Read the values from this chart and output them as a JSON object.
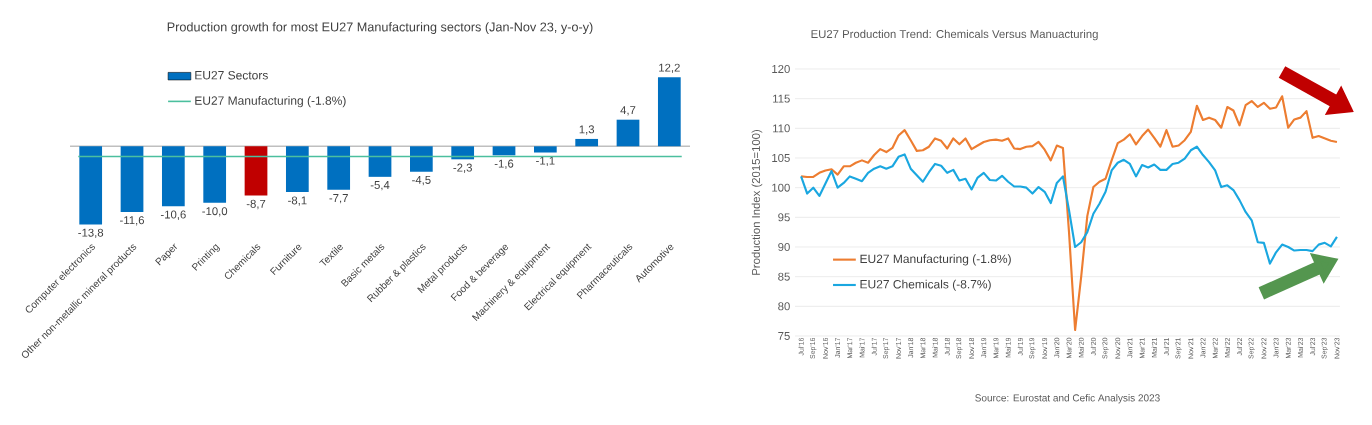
{
  "chart_data": [
    {
      "type": "bar",
      "title": "Production growth for most EU27 Manufacturing sectors (Jan-Nov 23, y-o-y)",
      "categories": [
        "Computer electronics",
        "Other non-metallic mineral products",
        "Paper",
        "Printing",
        "Chemicals",
        "Furniture",
        "Textile",
        "Basic metals",
        "Rubber & plastics",
        "Metal products",
        "Food & beverage",
        "Machinery & equipment",
        "Electrical equipment",
        "Pharmaceuticals",
        "Automotive"
      ],
      "series": [
        {
          "name": "EU27 Sectors",
          "colors": [
            "#0070c0",
            "#0070c0",
            "#0070c0",
            "#0070c0",
            "#c00000",
            "#0070c0",
            "#0070c0",
            "#0070c0",
            "#0070c0",
            "#0070c0",
            "#0070c0",
            "#0070c0",
            "#0070c0",
            "#0070c0",
            "#0070c0"
          ],
          "values": [
            -13.8,
            -11.6,
            -10.6,
            -10.0,
            -8.7,
            -8.1,
            -7.7,
            -5.4,
            -4.5,
            -2.3,
            -1.6,
            -1.1,
            1.3,
            4.7,
            12.2
          ],
          "value_labels": [
            "-13,8",
            "-11,6",
            "-10,6",
            "-10,0",
            "-8,7",
            "-8,1",
            "-7,7",
            "-5,4",
            "-4,5",
            "-2,3",
            "-1,6",
            "-1,1",
            "1,3",
            "4,7",
            "12,2"
          ]
        }
      ],
      "ref_lines": [
        {
          "axis": "y",
          "value": -1.8,
          "label": "EU27 Manufacturing (-1.8%)",
          "color": "#4bbf9e"
        }
      ],
      "legend": "top left"
    },
    {
      "type": "line",
      "title": "EU27 Production Trend: Chemicals Versus Manuacturing",
      "ylabel": "Production Index (2015=100)",
      "categories": [
        "Jul'16",
        null,
        "Sep'16",
        null,
        "Nov'16",
        null,
        "Jan'17",
        null,
        "Mar'17",
        null,
        "Mai'17",
        null,
        "Jul'17",
        null,
        "Sep'17",
        null,
        "Nov'17",
        null,
        "Jan'18",
        null,
        "Mar'18",
        null,
        "Mai'18",
        null,
        "Jul'18",
        null,
        "Sep'18",
        null,
        "Nov'18",
        null,
        "Jan'19",
        null,
        "Mar'19",
        null,
        "Mai'19",
        null,
        "Jul'19",
        null,
        "Sep'19",
        null,
        "Nov'19",
        null,
        "Jan'20",
        null,
        "Mar'20",
        null,
        "Mai'20",
        null,
        "Jul'20",
        null,
        "Sep'20",
        null,
        "Nov'20",
        null,
        "Jan'21",
        null,
        "Mar'21",
        null,
        "Mai'21",
        null,
        "Jul'21",
        null,
        "Sep'21",
        null,
        "Nov'21",
        null,
        "Jan'22",
        null,
        "Mar'22",
        null,
        "Mai'22",
        null,
        "Jul'22",
        null,
        "Sep'22",
        null,
        "Nov'22",
        null,
        "Jan'23",
        null,
        "Mar'23",
        null,
        "Mai'23",
        null,
        "Jul'23",
        null,
        "Sep'23",
        null,
        "Nov'23"
      ],
      "series": [
        {
          "name": "EU27 Manufacturing (-1.8%)",
          "color": "#ed7d31",
          "values": [
            101.9,
            101.8,
            101.8,
            102.5,
            102.9,
            103.1,
            102.2,
            103.6,
            103.6,
            104.2,
            104.6,
            104.2,
            105.5,
            106.5,
            106.0,
            106.7,
            108.8,
            109.7,
            108.0,
            106.2,
            106.3,
            106.9,
            108.3,
            107.9,
            106.6,
            108.3,
            107.3,
            108.3,
            106.5,
            107.1,
            107.7,
            108.0,
            108.1,
            107.9,
            108.3,
            106.6,
            106.5,
            106.9,
            107.0,
            107.7,
            106.4,
            104.6,
            107.1,
            106.7,
            92.5,
            76.0,
            85.0,
            95.2,
            100.1,
            101.0,
            101.5,
            104.6,
            107.5,
            108.1,
            109.0,
            107.3,
            108.7,
            109.8,
            108.4,
            106.9,
            109.7,
            106.9,
            107.1,
            108.0,
            109.4,
            113.8,
            111.4,
            111.8,
            111.4,
            110.1,
            113.6,
            113.0,
            110.5,
            113.9,
            114.6,
            113.6,
            114.3,
            113.3,
            113.5,
            115.4,
            110.1,
            111.5,
            111.8,
            112.9,
            108.4,
            108.7,
            108.3,
            107.9,
            107.7
          ]
        },
        {
          "name": "EU27 Chemicals (-8.7%)",
          "color": "#1aa7e0",
          "values": [
            101.9,
            99.0,
            100.0,
            98.6,
            100.7,
            102.8,
            100.0,
            100.8,
            101.9,
            101.5,
            101.1,
            102.5,
            103.2,
            103.6,
            103.2,
            103.6,
            105.2,
            105.6,
            103.2,
            102.1,
            101.0,
            102.6,
            104.0,
            103.7,
            102.5,
            103.0,
            101.2,
            101.5,
            99.7,
            101.7,
            102.5,
            101.3,
            101.2,
            102.0,
            101.0,
            100.2,
            100.2,
            100.0,
            99.0,
            100.1,
            99.3,
            97.4,
            100.8,
            101.9,
            96.2,
            90.0,
            90.8,
            92.5,
            95.6,
            97.3,
            99.3,
            102.9,
            104.2,
            104.7,
            104.0,
            101.9,
            103.8,
            103.4,
            103.9,
            103.0,
            103.0,
            104.0,
            104.2,
            104.9,
            106.3,
            106.9,
            105.5,
            104.3,
            102.9,
            100.1,
            100.4,
            99.6,
            97.9,
            95.9,
            94.5,
            90.8,
            90.7,
            87.2,
            89.1,
            90.4,
            90.0,
            89.4,
            89.5,
            89.5,
            89.3,
            90.4,
            90.7,
            90.1,
            91.7
          ]
        }
      ],
      "ylim": [
        75,
        120
      ],
      "yticks": [
        75,
        80,
        85,
        90,
        95,
        100,
        105,
        110,
        115,
        120
      ],
      "grid": "y",
      "legend": "bottom left",
      "annotations": [
        "Source: Eurostat and Cefic Analysis 2023"
      ]
    }
  ]
}
